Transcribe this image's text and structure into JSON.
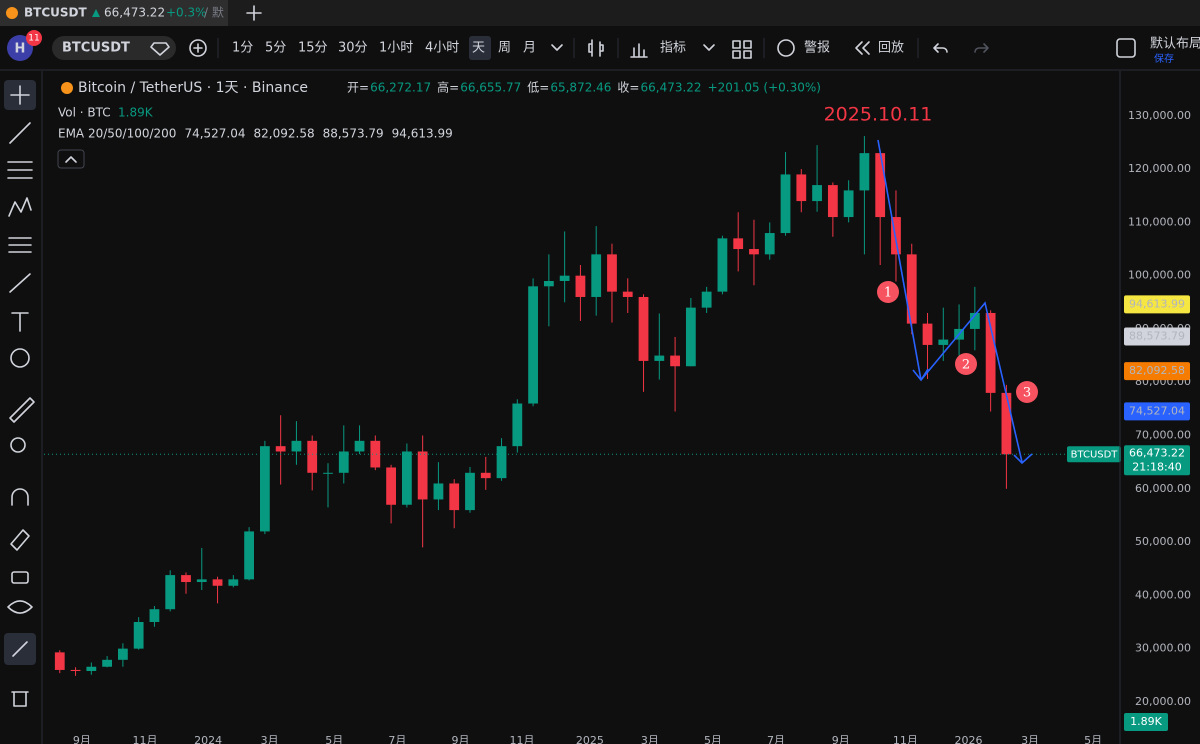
{
  "tab": {
    "symbol": "BTCUSDT",
    "price": "66,473.22",
    "change": "+0.3%",
    "rest": "/ 默"
  },
  "toolbar": {
    "avatar": "H",
    "badge": "11",
    "symbol": "BTCUSDT",
    "intervals": [
      "1分",
      "5分",
      "15分",
      "30分",
      "1小时",
      "4小时",
      "天",
      "周",
      "月"
    ],
    "indicators": "指标",
    "alerts": "警报",
    "replay": "回放",
    "layout": "默认布局",
    "save": "保存"
  },
  "legend": {
    "title": "Bitcoin / TetherUS · 1天 · Binance",
    "ohlc": [
      {
        "label": "开=",
        "value": "66,272.17"
      },
      {
        "label": "高=",
        "value": "66,655.77"
      },
      {
        "label": "低=",
        "value": "65,872.46"
      },
      {
        "label": "收=",
        "value": "66,473.22"
      }
    ],
    "change": "+201.05 (+0.30%)",
    "vol_label": "Vol · BTC",
    "vol_value": "1.89K",
    "ema_label": "EMA 20/50/100/200"
  },
  "chart_data": {
    "type": "candlestick",
    "annotation": "2025.10.11",
    "markers": [
      "1",
      "2",
      "3"
    ],
    "xlim": [
      -1.0,
      67.2
    ],
    "xticks": [
      {
        "value": 1.4,
        "label": "9月"
      },
      {
        "value": 5.4,
        "label": "11月"
      },
      {
        "value": 9.4,
        "label": "2024"
      },
      {
        "value": 13.3,
        "label": "3月"
      },
      {
        "value": 17.4,
        "label": "5月"
      },
      {
        "value": 21.4,
        "label": "7月"
      },
      {
        "value": 25.4,
        "label": "9月"
      },
      {
        "value": 29.3,
        "label": "11月"
      },
      {
        "value": 33.6,
        "label": "2025"
      },
      {
        "value": 37.4,
        "label": "3月"
      },
      {
        "value": 41.4,
        "label": "5月"
      },
      {
        "value": 45.4,
        "label": "7月"
      },
      {
        "value": 49.5,
        "label": "9月"
      },
      {
        "value": 53.6,
        "label": "11月"
      },
      {
        "value": 57.6,
        "label": "2026"
      },
      {
        "value": 61.5,
        "label": "3月"
      },
      {
        "value": 65.5,
        "label": "5月"
      }
    ],
    "ylim": [
      12100,
      138600
    ],
    "yticks": [
      {
        "value": 130000,
        "label": "130,000.00"
      },
      {
        "value": 120000,
        "label": "120,000.00"
      },
      {
        "value": 110000,
        "label": "110,000.00"
      },
      {
        "value": 100000,
        "label": "100,000.00"
      },
      {
        "value": 90000,
        "label": "90,000.00"
      },
      {
        "value": 80000,
        "label": "80,000.00"
      },
      {
        "value": 70000,
        "label": "70,000.00"
      },
      {
        "value": 60000,
        "label": "60,000.00"
      },
      {
        "value": 50000,
        "label": "50,000.00"
      },
      {
        "value": 40000,
        "label": "40,000.00"
      },
      {
        "value": 30000,
        "label": "30,000.00"
      },
      {
        "value": 20000,
        "label": "20,000.00"
      }
    ],
    "grid": false,
    "up_color": "#089981",
    "down_color": "#f23645",
    "open": [
      29300,
      26000,
      25800,
      26600,
      27900,
      30000,
      35000,
      37400,
      43800,
      42500,
      43000,
      41800,
      43000,
      52000,
      68000,
      67000,
      69000,
      63000,
      63000,
      67000,
      69000,
      64000,
      57000,
      67000,
      58000,
      61000,
      56000,
      63000,
      62000,
      68000,
      76000,
      98000,
      99000,
      100000,
      96000,
      104000,
      97000,
      96000,
      84000,
      85000,
      83000,
      94000,
      97000,
      107000,
      105000,
      104000,
      108000,
      119000,
      114000,
      117000,
      111000,
      116000,
      123000,
      111000,
      104000,
      91000,
      87000,
      88000,
      90000,
      93000,
      78000
    ],
    "high": [
      29700,
      26500,
      27400,
      28600,
      31000,
      35900,
      38000,
      44700,
      44300,
      48900,
      43500,
      43800,
      52800,
      69000,
      73800,
      72700,
      70000,
      64800,
      71900,
      71900,
      70000,
      64500,
      68500,
      70000,
      65000,
      61800,
      64100,
      66000,
      69500,
      76800,
      99500,
      104000,
      108300,
      102000,
      109300,
      106000,
      99500,
      96500,
      92900,
      88500,
      95800,
      97900,
      107500,
      111900,
      110500,
      110000,
      123200,
      120000,
      124500,
      117500,
      117900,
      126200,
      123500,
      116000,
      106000,
      93000,
      94000,
      94600,
      97900,
      93500,
      79500
    ],
    "low": [
      25400,
      24900,
      25100,
      26500,
      26600,
      29800,
      34100,
      37000,
      40300,
      41000,
      38500,
      41500,
      42800,
      51500,
      60800,
      64500,
      59700,
      56500,
      61000,
      66500,
      63500,
      53500,
      56500,
      49000,
      56000,
      52600,
      55500,
      59800,
      61500,
      66800,
      75500,
      90500,
      95000,
      91500,
      92500,
      91200,
      93000,
      78200,
      80500,
      74500,
      83000,
      93000,
      96500,
      100800,
      98200,
      103000,
      107500,
      111900,
      112000,
      107300,
      110000,
      104000,
      102000,
      98900,
      89000,
      80600,
      84000,
      85000,
      86000,
      74500,
      60000
    ],
    "close": [
      26000,
      25800,
      26600,
      27900,
      30000,
      35000,
      37400,
      43800,
      42500,
      43000,
      41800,
      43000,
      52000,
      68000,
      67000,
      69000,
      63000,
      63000,
      67000,
      69000,
      64000,
      57000,
      67000,
      58000,
      61000,
      56000,
      63000,
      62000,
      68000,
      76000,
      98000,
      99000,
      100000,
      96000,
      104000,
      97000,
      96000,
      84000,
      85000,
      83000,
      94000,
      97000,
      107000,
      105000,
      104000,
      108000,
      119000,
      114000,
      117000,
      111000,
      116000,
      123000,
      111000,
      104000,
      91000,
      87000,
      88000,
      90000,
      93000,
      78000,
      66473.22
    ],
    "price_labels": [
      {
        "value": 74527.04,
        "label": "74,527.04",
        "color": "#2962ff"
      },
      {
        "value": 82092.58,
        "label": "82,092.58",
        "color": "#f57c00"
      },
      {
        "value": 88573.79,
        "label": "88,573.79",
        "color": "#d1d4dc"
      },
      {
        "value": 94613.99,
        "label": "94,613.99",
        "color": "#f5e642"
      }
    ],
    "last": {
      "value": 66473.22,
      "label": "66,473.22",
      "symbol": "BTCUSDT",
      "countdown": "21:18:40",
      "color": "#089981"
    }
  }
}
